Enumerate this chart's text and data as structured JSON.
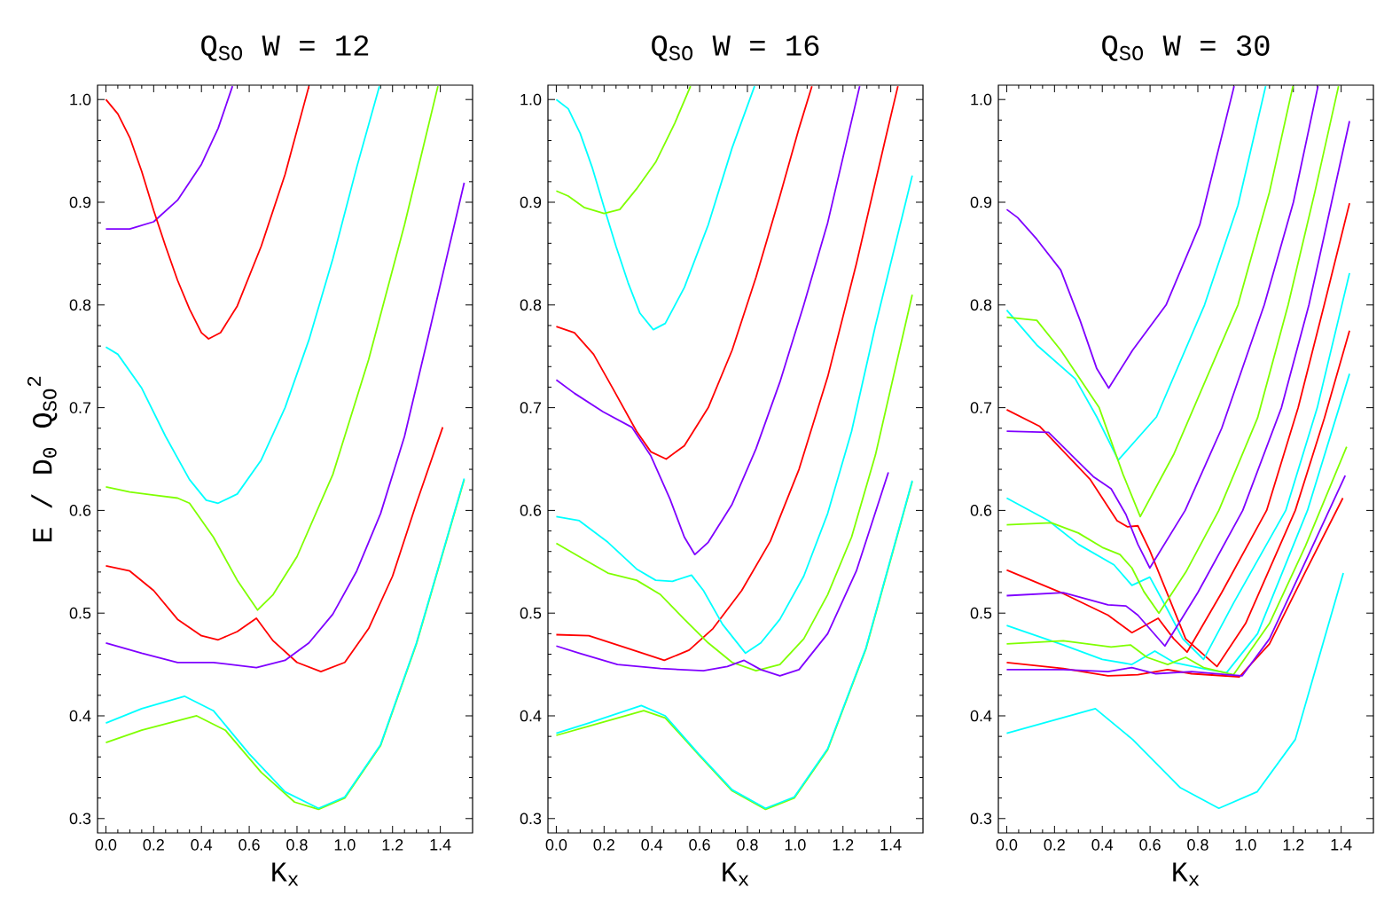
{
  "chart_data": [
    {
      "type": "line",
      "title": "Q$_{SO}$ W = 12",
      "xlabel": "K$_{x}$",
      "ylabel": "E / D$_{0}$ Q$_{SO}$$^{2}$",
      "xlim": [
        -0.035,
        1.535
      ],
      "ylim": [
        0.286,
        1.014
      ],
      "xticks": [
        {
          "value": 0,
          "label": "0.0"
        },
        {
          "value": 0.2,
          "label": "0.2"
        },
        {
          "value": 0.4,
          "label": "0.4"
        },
        {
          "value": 0.6,
          "label": "0.6"
        },
        {
          "value": 0.8,
          "label": "0.8"
        },
        {
          "value": 1.0,
          "label": "1.0"
        },
        {
          "value": 1.2,
          "label": "1.2"
        },
        {
          "value": 1.4,
          "label": "1.4"
        }
      ],
      "yticks": [
        {
          "value": 0.3,
          "label": "0.3"
        },
        {
          "value": 0.4,
          "label": "0.4"
        },
        {
          "value": 0.5,
          "label": "0.5"
        },
        {
          "value": 0.6,
          "label": "0.6"
        },
        {
          "value": 0.7,
          "label": "0.7"
        },
        {
          "value": 0.8,
          "label": "0.8"
        },
        {
          "value": 0.9,
          "label": "0.9"
        },
        {
          "value": 1.0,
          "label": "1.0"
        }
      ],
      "series": [
        {
          "color": "#7f00ff",
          "x": [
            0,
            0.1,
            0.2,
            0.3,
            0.4,
            0.47,
            0.53
          ],
          "values": [
            0.874,
            0.874,
            0.881,
            0.902,
            0.937,
            0.972,
            1.013
          ]
        },
        {
          "color": "#ff0000",
          "x": [
            0,
            0.05,
            0.1,
            0.15,
            0.2,
            0.25,
            0.3,
            0.35,
            0.4,
            0.43,
            0.48,
            0.55,
            0.65,
            0.75,
            0.85
          ],
          "values": [
            1.0,
            0.986,
            0.963,
            0.93,
            0.892,
            0.857,
            0.824,
            0.796,
            0.773,
            0.767,
            0.773,
            0.799,
            0.857,
            0.927,
            1.013
          ]
        },
        {
          "color": "#00ffff",
          "x": [
            0,
            0.05,
            0.15,
            0.25,
            0.35,
            0.42,
            0.47,
            0.55,
            0.65,
            0.75,
            0.85,
            0.95,
            1.05,
            1.145
          ],
          "values": [
            0.759,
            0.752,
            0.719,
            0.672,
            0.63,
            0.61,
            0.607,
            0.616,
            0.649,
            0.7,
            0.766,
            0.845,
            0.934,
            1.013
          ]
        },
        {
          "color": "#7fff00",
          "x": [
            0,
            0.1,
            0.2,
            0.3,
            0.35,
            0.45,
            0.55,
            0.635,
            0.7,
            0.8,
            0.95,
            1.1,
            1.25,
            1.39
          ],
          "values": [
            0.623,
            0.618,
            0.615,
            0.612,
            0.607,
            0.574,
            0.532,
            0.503,
            0.518,
            0.555,
            0.635,
            0.747,
            0.878,
            1.013
          ]
        },
        {
          "color": "#ff0000",
          "x": [
            0,
            0.1,
            0.2,
            0.3,
            0.4,
            0.47,
            0.55,
            0.63,
            0.7,
            0.8,
            0.9,
            1.0,
            1.1,
            1.2,
            1.3,
            1.41
          ],
          "values": [
            0.546,
            0.541,
            0.522,
            0.494,
            0.478,
            0.474,
            0.482,
            0.495,
            0.473,
            0.452,
            0.443,
            0.452,
            0.485,
            0.536,
            0.607,
            0.681
          ]
        },
        {
          "color": "#7f00ff",
          "x": [
            0,
            0.15,
            0.3,
            0.45,
            0.63,
            0.75,
            0.85,
            0.95,
            1.05,
            1.15,
            1.25,
            1.35,
            1.5
          ],
          "values": [
            0.471,
            0.461,
            0.452,
            0.452,
            0.447,
            0.454,
            0.471,
            0.499,
            0.541,
            0.597,
            0.672,
            0.77,
            0.919
          ]
        },
        {
          "color": "#7fff00",
          "x": [
            0,
            0.15,
            0.38,
            0.5,
            0.65,
            0.79,
            0.89,
            1.0,
            1.15,
            1.3,
            1.5
          ],
          "values": [
            0.374,
            0.386,
            0.4,
            0.386,
            0.345,
            0.316,
            0.309,
            0.32,
            0.371,
            0.47,
            0.63
          ]
        },
        {
          "color": "#00ffff",
          "x": [
            0,
            0.15,
            0.33,
            0.45,
            0.6,
            0.75,
            0.89,
            1.0,
            1.15,
            1.3,
            1.5
          ],
          "values": [
            0.393,
            0.407,
            0.419,
            0.405,
            0.363,
            0.326,
            0.31,
            0.321,
            0.372,
            0.471,
            0.631
          ]
        }
      ]
    },
    {
      "type": "line",
      "title": "Q$_{SO}$ W = 16",
      "xlabel": "K$_{x}$",
      "xlim": [
        -0.035,
        1.535
      ],
      "ylim": [
        0.286,
        1.014
      ],
      "xticks": [
        {
          "value": 0,
          "label": "0.0"
        },
        {
          "value": 0.2,
          "label": "0.2"
        },
        {
          "value": 0.4,
          "label": "0.4"
        },
        {
          "value": 0.6,
          "label": "0.6"
        },
        {
          "value": 0.8,
          "label": "0.8"
        },
        {
          "value": 1.0,
          "label": "1.0"
        },
        {
          "value": 1.2,
          "label": "1.2"
        },
        {
          "value": 1.4,
          "label": "1.4"
        }
      ],
      "yticks": [
        {
          "value": 0.3,
          "label": "0.3"
        },
        {
          "value": 0.4,
          "label": "0.4"
        },
        {
          "value": 0.5,
          "label": "0.5"
        },
        {
          "value": 0.6,
          "label": "0.6"
        },
        {
          "value": 0.7,
          "label": "0.7"
        },
        {
          "value": 0.8,
          "label": "0.8"
        },
        {
          "value": 0.9,
          "label": "0.9"
        },
        {
          "value": 1.0,
          "label": "1.0"
        }
      ],
      "series": [
        {
          "color": "#00ffff",
          "x": [
            0,
            0.05,
            0.1,
            0.15,
            0.2,
            0.25,
            0.3,
            0.35,
            0.406,
            0.456,
            0.536,
            0.636,
            0.736,
            0.83
          ],
          "values": [
            1.0,
            0.991,
            0.967,
            0.934,
            0.895,
            0.857,
            0.822,
            0.792,
            0.776,
            0.782,
            0.817,
            0.878,
            0.953,
            1.013
          ]
        },
        {
          "color": "#7fff00",
          "x": [
            0,
            0.05,
            0.116,
            0.2,
            0.266,
            0.336,
            0.416,
            0.496,
            0.562
          ],
          "values": [
            0.911,
            0.906,
            0.895,
            0.889,
            0.893,
            0.913,
            0.939,
            0.977,
            1.013
          ]
        },
        {
          "color": "#ff0000",
          "x": [
            0,
            0.076,
            0.156,
            0.236,
            0.336,
            0.396,
            0.46,
            0.536,
            0.636,
            0.736,
            0.836,
            0.936,
            1.016,
            1.07
          ],
          "values": [
            0.779,
            0.773,
            0.752,
            0.719,
            0.677,
            0.657,
            0.65,
            0.663,
            0.7,
            0.756,
            0.827,
            0.906,
            0.972,
            1.013
          ]
        },
        {
          "color": "#7f00ff",
          "x": [
            0,
            0.076,
            0.196,
            0.316,
            0.396,
            0.476,
            0.536,
            0.58,
            0.636,
            0.736,
            0.836,
            0.936,
            1.036,
            1.136,
            1.27
          ],
          "values": [
            0.727,
            0.714,
            0.696,
            0.681,
            0.653,
            0.611,
            0.574,
            0.557,
            0.569,
            0.606,
            0.66,
            0.725,
            0.8,
            0.88,
            1.013
          ]
        },
        {
          "color": "#ff0000",
          "x": [
            0,
            0.136,
            0.296,
            0.452,
            0.556,
            0.656,
            0.776,
            0.896,
            1.016,
            1.136,
            1.256,
            1.376,
            1.43
          ],
          "values": [
            0.479,
            0.478,
            0.466,
            0.454,
            0.464,
            0.485,
            0.522,
            0.57,
            0.64,
            0.73,
            0.84,
            0.96,
            1.013
          ]
        },
        {
          "color": "#00ffff",
          "x": [
            0,
            0.096,
            0.216,
            0.336,
            0.416,
            0.486,
            0.566,
            0.616,
            0.696,
            0.792,
            0.856,
            0.936,
            1.036,
            1.136,
            1.236,
            1.336,
            1.49
          ],
          "values": [
            0.594,
            0.59,
            0.569,
            0.543,
            0.532,
            0.531,
            0.537,
            0.522,
            0.489,
            0.461,
            0.471,
            0.494,
            0.536,
            0.597,
            0.677,
            0.78,
            0.926
          ]
        },
        {
          "color": "#7fff00",
          "x": [
            0,
            0.096,
            0.216,
            0.336,
            0.436,
            0.536,
            0.636,
            0.736,
            0.836,
            0.936,
            1.036,
            1.136,
            1.236,
            1.336,
            1.49
          ],
          "values": [
            0.568,
            0.555,
            0.539,
            0.532,
            0.518,
            0.494,
            0.471,
            0.452,
            0.444,
            0.45,
            0.475,
            0.518,
            0.574,
            0.654,
            0.81
          ]
        },
        {
          "color": "#7f00ff",
          "x": [
            0,
            0.096,
            0.256,
            0.436,
            0.616,
            0.716,
            0.786,
            0.856,
            0.936,
            1.016,
            1.136,
            1.256,
            1.39
          ],
          "values": [
            0.468,
            0.461,
            0.45,
            0.446,
            0.444,
            0.448,
            0.454,
            0.445,
            0.439,
            0.445,
            0.48,
            0.541,
            0.637
          ]
        },
        {
          "color": "#7fff00",
          "x": [
            0,
            0.136,
            0.366,
            0.456,
            0.596,
            0.736,
            0.876,
            0.996,
            1.136,
            1.296,
            1.49
          ],
          "values": [
            0.381,
            0.39,
            0.405,
            0.398,
            0.362,
            0.327,
            0.309,
            0.32,
            0.367,
            0.465,
            0.628
          ]
        },
        {
          "color": "#00ffff",
          "x": [
            0,
            0.136,
            0.356,
            0.456,
            0.596,
            0.736,
            0.876,
            0.996,
            1.136,
            1.296,
            1.49
          ],
          "values": [
            0.383,
            0.393,
            0.41,
            0.4,
            0.363,
            0.328,
            0.31,
            0.321,
            0.368,
            0.466,
            0.629
          ]
        }
      ]
    },
    {
      "type": "line",
      "title": "Q$_{SO}$ W = 30",
      "xlabel": "K$_{x}$",
      "xlim": [
        -0.035,
        1.535
      ],
      "ylim": [
        0.286,
        1.014
      ],
      "xticks": [
        {
          "value": 0,
          "label": "0.0"
        },
        {
          "value": 0.2,
          "label": "0.2"
        },
        {
          "value": 0.4,
          "label": "0.4"
        },
        {
          "value": 0.6,
          "label": "0.6"
        },
        {
          "value": 0.8,
          "label": "0.8"
        },
        {
          "value": 1.0,
          "label": "1.0"
        },
        {
          "value": 1.2,
          "label": "1.2"
        },
        {
          "value": 1.4,
          "label": "1.4"
        }
      ],
      "yticks": [
        {
          "value": 0.3,
          "label": "0.3"
        },
        {
          "value": 0.4,
          "label": "0.4"
        },
        {
          "value": 0.5,
          "label": "0.5"
        },
        {
          "value": 0.6,
          "label": "0.6"
        },
        {
          "value": 0.7,
          "label": "0.7"
        },
        {
          "value": 0.8,
          "label": "0.8"
        },
        {
          "value": 0.9,
          "label": "0.9"
        },
        {
          "value": 1.0,
          "label": "1.0"
        }
      ],
      "series": [
        {
          "color": "#7f00ff",
          "x": [
            0,
            0.046,
            0.126,
            0.226,
            0.307,
            0.377,
            0.427,
            0.527,
            0.667,
            0.808,
            0.952
          ],
          "values": [
            0.893,
            0.885,
            0.864,
            0.834,
            0.785,
            0.738,
            0.719,
            0.756,
            0.8,
            0.878,
            1.013
          ]
        },
        {
          "color": "#00ffff",
          "x": [
            0,
            0.126,
            0.287,
            0.377,
            0.467,
            0.627,
            0.828,
            0.968,
            1.084
          ],
          "values": [
            0.795,
            0.761,
            0.728,
            0.691,
            0.649,
            0.691,
            0.8,
            0.897,
            1.013
          ]
        },
        {
          "color": "#7fff00",
          "x": [
            0,
            0.126,
            0.226,
            0.387,
            0.487,
            0.559,
            0.7,
            0.968,
            1.1,
            1.198
          ],
          "values": [
            0.788,
            0.785,
            0.756,
            0.7,
            0.635,
            0.594,
            0.655,
            0.8,
            0.91,
            1.013
          ]
        },
        {
          "color": "#ff0000",
          "x": [
            0,
            0.137,
            0.35,
            0.462,
            0.506,
            0.549,
            0.599,
            0.674,
            0.749,
            0.88,
            1.0,
            1.208,
            1.33,
            1.435
          ],
          "values": [
            0.698,
            0.682,
            0.63,
            0.59,
            0.584,
            0.585,
            0.561,
            0.518,
            0.475,
            0.448,
            0.49,
            0.6,
            0.69,
            0.775
          ]
        },
        {
          "color": "#7f00ff",
          "x": [
            0,
            0.175,
            0.275,
            0.362,
            0.437,
            0.499,
            0.549,
            0.599,
            0.747,
            0.9,
            1.078,
            1.2,
            1.303
          ],
          "values": [
            0.677,
            0.676,
            0.653,
            0.633,
            0.621,
            0.596,
            0.567,
            0.544,
            0.6,
            0.68,
            0.8,
            0.9,
            1.013
          ]
        },
        {
          "color": "#00ffff",
          "x": [
            0,
            0.175,
            0.3,
            0.449,
            0.524,
            0.599,
            0.674,
            0.737,
            0.824,
            0.95,
            1.168,
            1.3,
            1.435
          ],
          "values": [
            0.612,
            0.59,
            0.567,
            0.547,
            0.527,
            0.535,
            0.503,
            0.475,
            0.455,
            0.51,
            0.6,
            0.7,
            0.831
          ]
        },
        {
          "color": "#7fff00",
          "x": [
            0,
            0.187,
            0.3,
            0.4,
            0.474,
            0.524,
            0.574,
            0.637,
            0.75,
            0.888,
            1.05,
            1.178,
            1.29,
            1.389
          ],
          "values": [
            0.586,
            0.588,
            0.578,
            0.564,
            0.557,
            0.544,
            0.521,
            0.5,
            0.54,
            0.6,
            0.69,
            0.8,
            0.91,
            1.013
          ]
        },
        {
          "color": "#ff0000",
          "x": [
            0,
            0.237,
            0.424,
            0.524,
            0.634,
            0.699,
            0.755,
            0.9,
            1.088,
            1.22,
            1.329,
            1.435
          ],
          "values": [
            0.542,
            0.519,
            0.498,
            0.481,
            0.495,
            0.475,
            0.462,
            0.52,
            0.6,
            0.7,
            0.8,
            0.899
          ]
        },
        {
          "color": "#7f00ff",
          "x": [
            0,
            0.237,
            0.424,
            0.499,
            0.549,
            0.662,
            0.8,
            0.988,
            1.15,
            1.265,
            1.435
          ],
          "values": [
            0.517,
            0.52,
            0.508,
            0.507,
            0.498,
            0.468,
            0.52,
            0.6,
            0.7,
            0.8,
            0.979
          ]
        },
        {
          "color": "#00ffff",
          "x": [
            0,
            0.237,
            0.4,
            0.524,
            0.62,
            0.7,
            0.82,
            0.92,
            1.05,
            1.259,
            1.435
          ],
          "values": [
            0.488,
            0.469,
            0.455,
            0.45,
            0.463,
            0.452,
            0.446,
            0.442,
            0.48,
            0.6,
            0.733
          ]
        },
        {
          "color": "#7fff00",
          "x": [
            0,
            0.237,
            0.437,
            0.518,
            0.587,
            0.674,
            0.749,
            0.824,
            0.949,
            1.1,
            1.25,
            1.423
          ],
          "values": [
            0.47,
            0.473,
            0.467,
            0.469,
            0.457,
            0.45,
            0.457,
            0.447,
            0.44,
            0.49,
            0.565,
            0.662
          ]
        },
        {
          "color": "#ff0000",
          "x": [
            0,
            0.237,
            0.424,
            0.549,
            0.674,
            0.774,
            0.974,
            1.1,
            1.25,
            1.407
          ],
          "values": [
            0.452,
            0.446,
            0.439,
            0.44,
            0.445,
            0.441,
            0.438,
            0.47,
            0.54,
            0.612
          ]
        },
        {
          "color": "#7f00ff",
          "x": [
            0,
            0.237,
            0.424,
            0.524,
            0.624,
            0.774,
            0.924,
            0.986,
            1.1,
            1.25,
            1.417
          ],
          "values": [
            0.445,
            0.445,
            0.443,
            0.447,
            0.441,
            0.443,
            0.44,
            0.439,
            0.475,
            0.55,
            0.634
          ]
        },
        {
          "color": "#00ffff",
          "x": [
            0,
            0.371,
            0.527,
            0.727,
            0.888,
            1.048,
            1.208,
            1.409
          ],
          "values": [
            0.383,
            0.407,
            0.377,
            0.33,
            0.31,
            0.326,
            0.377,
            0.539
          ]
        }
      ]
    }
  ]
}
